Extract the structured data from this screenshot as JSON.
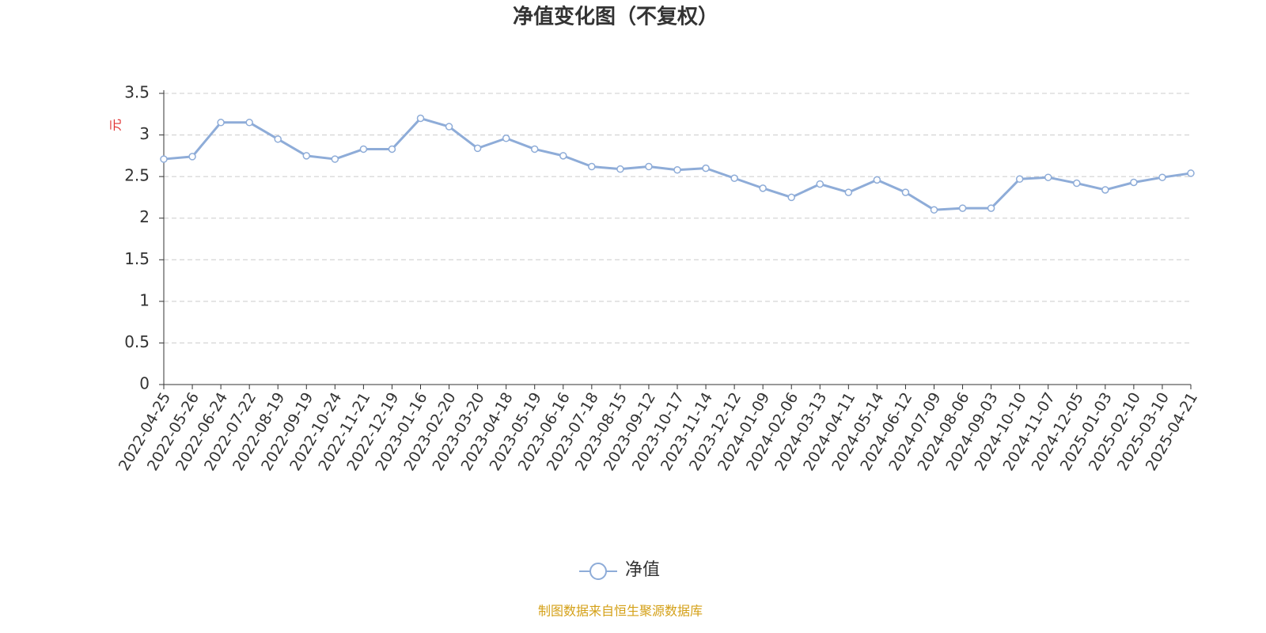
{
  "chart_data": {
    "type": "line",
    "title": "净值变化图（不复权）",
    "y_axis_label": "元",
    "source": "制图数据来自恒生聚源数据库",
    "categories": [
      "2022-04-25",
      "2022-05-26",
      "2022-06-24",
      "2022-07-22",
      "2022-08-19",
      "2022-09-19",
      "2022-10-24",
      "2022-11-21",
      "2022-12-19",
      "2023-01-16",
      "2023-02-20",
      "2023-03-20",
      "2023-04-18",
      "2023-05-19",
      "2023-06-16",
      "2023-07-18",
      "2023-08-15",
      "2023-09-12",
      "2023-10-17",
      "2023-11-14",
      "2023-12-12",
      "2024-01-09",
      "2024-02-06",
      "2024-03-13",
      "2024-04-11",
      "2024-05-14",
      "2024-06-12",
      "2024-07-09",
      "2024-08-06",
      "2024-09-03",
      "2024-10-10",
      "2024-11-07",
      "2024-12-05",
      "2025-01-03",
      "2025-02-10",
      "2025-03-10",
      "2025-04-21"
    ],
    "series": [
      {
        "name": "净值",
        "color": "#8eacd8",
        "values": [
          2.71,
          2.74,
          3.15,
          3.15,
          2.95,
          2.75,
          2.71,
          2.83,
          2.83,
          3.2,
          3.1,
          2.84,
          2.96,
          2.83,
          2.75,
          2.62,
          2.59,
          2.62,
          2.58,
          2.6,
          2.48,
          2.36,
          2.25,
          2.41,
          2.31,
          2.46,
          2.31,
          2.1,
          2.12,
          2.12,
          2.47,
          2.49,
          2.42,
          2.34,
          2.43,
          2.49,
          2.54
        ]
      }
    ],
    "ylim": [
      0,
      3.5
    ],
    "yticks": [
      0,
      0.5,
      1,
      1.5,
      2,
      2.5,
      3,
      3.5
    ],
    "grid": true,
    "legend": "bottom"
  }
}
